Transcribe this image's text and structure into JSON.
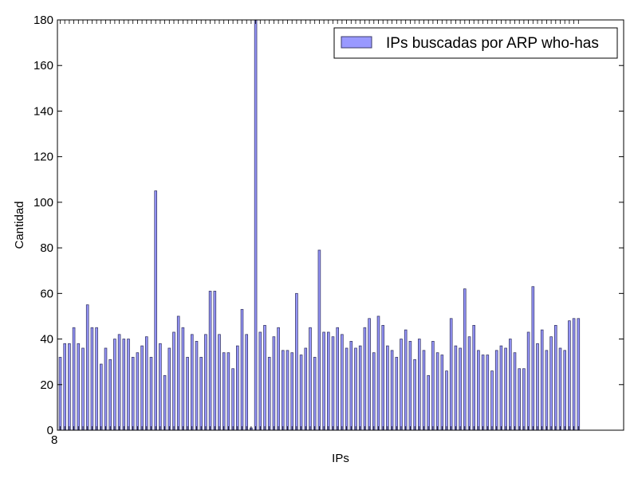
{
  "chart_data": {
    "type": "bar",
    "xlabel": "IPs",
    "ylabel": "Cantidad",
    "ylim": [
      0,
      180
    ],
    "yticks": [
      0,
      20,
      40,
      60,
      80,
      100,
      120,
      140,
      160,
      180
    ],
    "grid": false,
    "legend_position": "top-right",
    "colors": {
      "bar_fill": "#9999ff",
      "bar_edge": "#3a3a6a",
      "axis": "#000000"
    },
    "series": [
      {
        "name": "IPs buscadas por ARP who-has",
        "values": [
          32,
          38,
          38,
          45,
          38,
          36,
          55,
          45,
          45,
          29,
          36,
          31,
          40,
          42,
          40,
          40,
          32,
          34,
          37,
          41,
          32,
          105,
          38,
          24,
          36,
          43,
          50,
          45,
          32,
          42,
          39,
          32,
          42,
          61,
          61,
          42,
          34,
          34,
          27,
          37,
          53,
          42,
          1,
          180,
          43,
          46,
          32,
          41,
          45,
          35,
          35,
          34,
          60,
          33,
          36,
          45,
          32,
          79,
          43,
          43,
          41,
          45,
          42,
          36,
          39,
          36,
          37,
          45,
          49,
          34,
          50,
          46,
          37,
          35,
          32,
          40,
          44,
          39,
          31,
          40,
          35,
          24,
          39,
          34,
          33,
          26,
          49,
          37,
          36,
          62,
          41,
          46,
          35,
          33,
          33,
          26,
          35,
          37,
          36,
          40,
          34,
          27,
          27,
          43,
          63,
          38,
          44,
          35,
          41,
          46,
          36,
          35,
          48,
          49,
          49
        ]
      }
    ],
    "xtick_text": "8"
  }
}
